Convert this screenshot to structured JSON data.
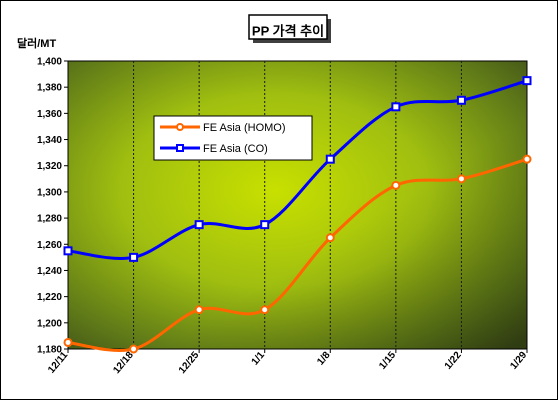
{
  "chart_data": {
    "type": "line",
    "title": "PP 가격 추이",
    "ylabel": "달러/MT",
    "xlabel": "",
    "categories": [
      "12/11",
      "12/18",
      "12/25",
      "1/1",
      "1/8",
      "1/15",
      "1/22",
      "1/29"
    ],
    "ylim": [
      1180,
      1400
    ],
    "yticks": [
      1180,
      1200,
      1220,
      1240,
      1260,
      1280,
      1300,
      1320,
      1340,
      1360,
      1380,
      1400
    ],
    "ytick_labels": [
      "1,180",
      "1,200",
      "1,220",
      "1,240",
      "1,260",
      "1,280",
      "1,300",
      "1,320",
      "1,340",
      "1,360",
      "1,380",
      "1,400"
    ],
    "grid": "vertical",
    "legend_position": "upper-left",
    "series": [
      {
        "name": "FE Asia (HOMO)",
        "color": "#ff6600",
        "values": [
          1185,
          1180,
          1210,
          1210,
          1265,
          1305,
          1310,
          1325
        ]
      },
      {
        "name": "FE Asia (CO)",
        "color": "#0000ff",
        "values": [
          1255,
          1250,
          1275,
          1275,
          1325,
          1365,
          1370,
          1385
        ]
      }
    ]
  }
}
